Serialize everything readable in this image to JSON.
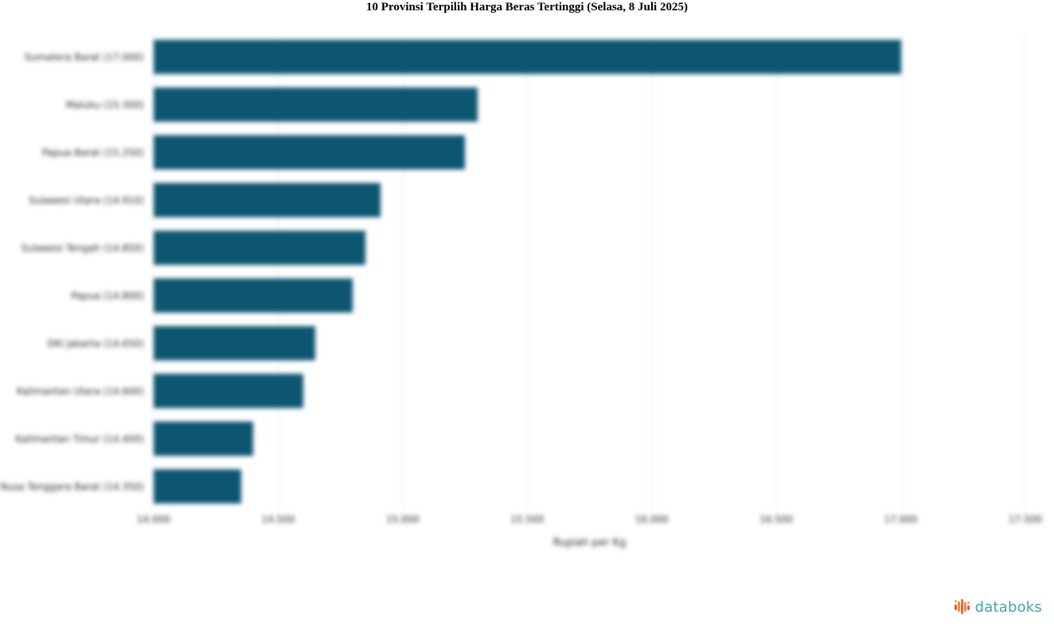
{
  "title": "10 Provinsi Terpilih Harga Beras Tertinggi (Selasa, 8 Juli 2025)",
  "chart_data": {
    "type": "bar",
    "orientation": "horizontal",
    "title": "10 Provinsi Terpilih Harga Beras Tertinggi (Selasa, 8 Juli 2025)",
    "xlabel": "Rupiah per Kg",
    "ylabel": "",
    "categories": [
      "Sumatera Barat (17.000)",
      "Maluku (15.300)",
      "Papua Barat (15.250)",
      "Sulawesi Utara (14.910)",
      "Sulawesi Tengah (14.850)",
      "Papua (14.800)",
      "DKI Jakarta (14.650)",
      "Kalimantan Utara (14.600)",
      "Kalimantan Timur (14.400)",
      "Nusa Tenggara Barat (14.350)"
    ],
    "values": [
      17000,
      15300,
      15250,
      14910,
      14850,
      14800,
      14650,
      14600,
      14400,
      14350
    ],
    "xlim": [
      14000,
      17500
    ],
    "xticks": [
      14000,
      14500,
      15000,
      15500,
      16000,
      16500,
      17000,
      17500
    ],
    "xtick_labels": [
      "14.000",
      "14.500",
      "15.000",
      "15.500",
      "16.000",
      "16.500",
      "17.000",
      "17.500"
    ],
    "bar_color": "#0d5571",
    "grid": true,
    "grid_color": "#e7e7e7",
    "legend_position": "none"
  },
  "branding": {
    "logo_text": "databoks",
    "logo_text_color": "#45a3a3",
    "icon_bar_colors": [
      "#e25345",
      "#f0883f",
      "#ef6a35",
      "#f0883f",
      "#e25345"
    ],
    "icon_dot_color": "#f3a052"
  }
}
